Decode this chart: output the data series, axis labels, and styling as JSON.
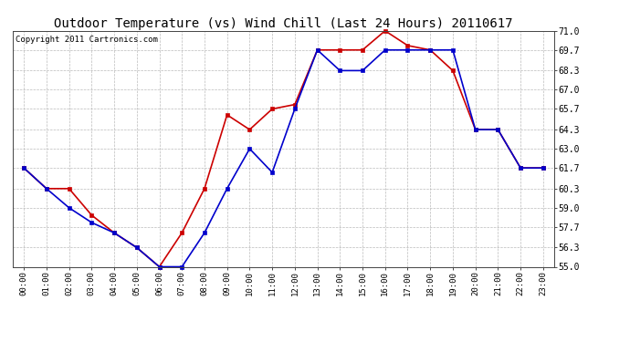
{
  "title": "Outdoor Temperature (vs) Wind Chill (Last 24 Hours) 20110617",
  "copyright": "Copyright 2011 Cartronics.com",
  "hours": [
    "00:00",
    "01:00",
    "02:00",
    "03:00",
    "04:00",
    "05:00",
    "06:00",
    "07:00",
    "08:00",
    "09:00",
    "10:00",
    "11:00",
    "12:00",
    "13:00",
    "14:00",
    "15:00",
    "16:00",
    "17:00",
    "18:00",
    "19:00",
    "20:00",
    "21:00",
    "22:00",
    "23:00"
  ],
  "temp": [
    61.7,
    60.3,
    60.3,
    58.5,
    57.3,
    56.3,
    55.0,
    57.3,
    60.3,
    65.3,
    64.3,
    65.7,
    66.0,
    69.7,
    69.7,
    69.7,
    71.0,
    70.0,
    69.7,
    68.3,
    64.3,
    64.3,
    61.7,
    61.7
  ],
  "wind_chill": [
    61.7,
    60.3,
    59.0,
    58.0,
    57.3,
    56.3,
    55.0,
    55.0,
    57.3,
    60.3,
    63.0,
    61.4,
    65.7,
    69.7,
    68.3,
    68.3,
    69.7,
    69.7,
    69.7,
    69.7,
    64.3,
    64.3,
    61.7,
    61.7
  ],
  "temp_color": "#cc0000",
  "wind_chill_color": "#0000cc",
  "bg_color": "#ffffff",
  "plot_bg_color": "#ffffff",
  "grid_color": "#bbbbbb",
  "ylim": [
    55.0,
    71.0
  ],
  "yticks": [
    55.0,
    56.3,
    57.7,
    59.0,
    60.3,
    61.7,
    63.0,
    64.3,
    65.7,
    67.0,
    68.3,
    69.7,
    71.0
  ],
  "title_fontsize": 10,
  "copyright_fontsize": 6.5,
  "marker": "s",
  "marker_size": 2.5,
  "linewidth": 1.2
}
